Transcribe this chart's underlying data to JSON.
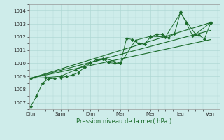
{
  "xlabel": "Pression niveau de la mer( hPa )",
  "xtick_labels": [
    "Ditn",
    "Sam",
    "Dim",
    "Mar",
    "Mer",
    "Jeu",
    "Ven"
  ],
  "xtick_positions": [
    0,
    1,
    2,
    3,
    4,
    5,
    6
  ],
  "xlim": [
    -0.05,
    6.3
  ],
  "ylim": [
    1006.5,
    1014.5
  ],
  "ytick_values": [
    1007,
    1008,
    1009,
    1010,
    1011,
    1012,
    1013,
    1014
  ],
  "background_color": "#ceecea",
  "grid_color": "#b0d8d5",
  "line_color": "#1a6b2a",
  "marker_color": "#1a6b2a",
  "series": [
    {
      "x": [
        0.0,
        0.2,
        0.4,
        0.6,
        0.8,
        1.0,
        1.2,
        1.4,
        1.6,
        1.8,
        2.0,
        2.2,
        2.4,
        2.6,
        2.8,
        3.0,
        3.2,
        3.4,
        3.6,
        3.8,
        4.0,
        4.2,
        4.4,
        4.6,
        4.8,
        5.0,
        5.2,
        5.4,
        5.6,
        5.8,
        6.0
      ],
      "y": [
        1006.7,
        1007.5,
        1008.5,
        1008.8,
        1008.85,
        1008.9,
        1009.0,
        1009.1,
        1009.3,
        1009.7,
        1010.0,
        1010.3,
        1010.35,
        1010.05,
        1010.0,
        1010.0,
        1011.9,
        1011.8,
        1011.5,
        1011.45,
        1012.0,
        1012.2,
        1012.2,
        1011.95,
        1012.25,
        1013.9,
        1013.05,
        1012.1,
        1012.15,
        1011.85,
        1013.05
      ],
      "has_markers": true
    },
    {
      "x": [
        0.0,
        0.5,
        1.0,
        1.5,
        2.0,
        2.5,
        3.0,
        3.5,
        4.0,
        4.5,
        5.0,
        5.5,
        6.0
      ],
      "y": [
        1008.85,
        1008.9,
        1009.0,
        1009.5,
        1010.05,
        1010.35,
        1010.0,
        1011.75,
        1012.05,
        1012.0,
        1013.85,
        1012.2,
        1013.1
      ],
      "has_markers": true
    },
    {
      "x": [
        0.0,
        6.0
      ],
      "y": [
        1008.85,
        1012.5
      ],
      "has_markers": false
    },
    {
      "x": [
        0.0,
        6.0
      ],
      "y": [
        1008.85,
        1011.8
      ],
      "has_markers": false
    },
    {
      "x": [
        0.0,
        6.0
      ],
      "y": [
        1008.85,
        1013.1
      ],
      "has_markers": false
    }
  ]
}
